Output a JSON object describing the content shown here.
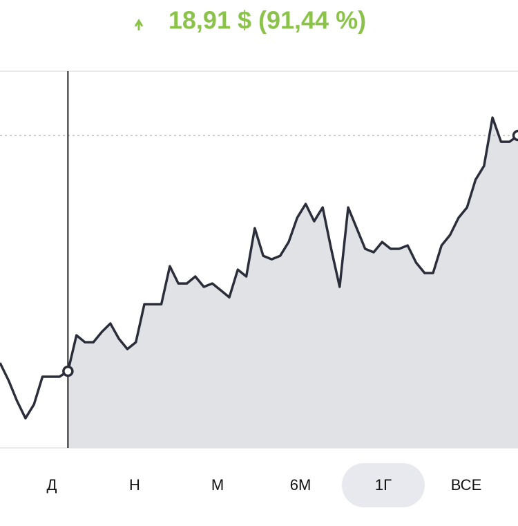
{
  "header": {
    "change": "18,91 $ (91,44 %)"
  },
  "chart_data": {
    "type": "line",
    "color": "#2b2e3a",
    "fill": "#e1e2e6",
    "ylim": [
      14.53,
      44.75
    ],
    "values": [
      21.35,
      19.96,
      18.3,
      16.91,
      18.02,
      20.24,
      20.24,
      20.24,
      20.68,
      23.56,
      23.01,
      23.01,
      23.84,
      24.51,
      23.29,
      22.46,
      23.01,
      26.06,
      26.06,
      26.06,
      29.11,
      27.72,
      27.72,
      28.28,
      27.45,
      27.72,
      27.17,
      26.61,
      28.83,
      28.28,
      32.16,
      29.94,
      29.66,
      29.94,
      31.05,
      32.99,
      34.1,
      32.71,
      33.82,
      30.5,
      27.45,
      33.82,
      32.16,
      30.5,
      30.22,
      31.05,
      30.5,
      30.5,
      30.77,
      29.39,
      28.56,
      28.56,
      30.77,
      31.61,
      32.99,
      33.82,
      36.04,
      37.15,
      41.03,
      39.09,
      39.09,
      39.59
    ],
    "marker_index": 8
  },
  "ranges": {
    "items": [
      "Д",
      "Н",
      "М",
      "6М",
      "1Г",
      "ВСЕ"
    ],
    "selected": 4
  }
}
